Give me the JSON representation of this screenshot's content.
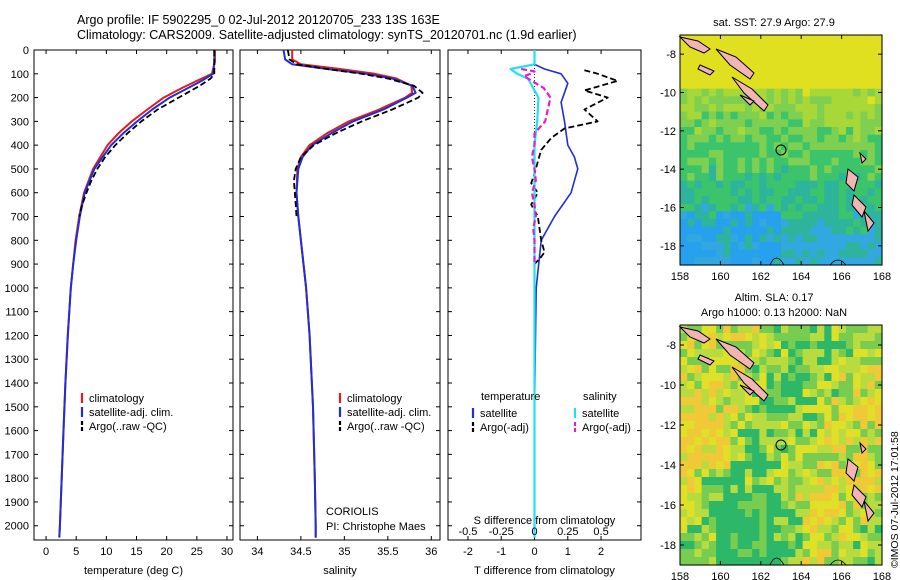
{
  "header": {
    "title_line1": "Argo profile: IF 5902295_0 02-Jul-2012 20120705_233 13S 163E",
    "title_line2": "Climatology: CARS2009. Satellite-adjusted climatology: synTS_20120701.nc (1.9d earlier)"
  },
  "colors": {
    "climatology": "#e41a1c",
    "satellite": "#1f2fd6",
    "argo": "#000000",
    "salinity_satellite": "#22e0f0",
    "salinity_argo": "#e020d0"
  },
  "chart_data": [
    {
      "type": "line",
      "xlabel": "temperature (deg C)",
      "ylabel": "",
      "xlim": [
        -2,
        31
      ],
      "ylim": [
        2060,
        0
      ],
      "xticks": [
        0,
        5,
        10,
        15,
        20,
        25,
        30
      ],
      "yticks": [
        0,
        100,
        200,
        300,
        400,
        500,
        600,
        700,
        800,
        900,
        1000,
        1100,
        1200,
        1300,
        1400,
        1500,
        1600,
        1700,
        1800,
        1900,
        2000
      ],
      "legend": [
        "climatology",
        "satellite-adj. clim.",
        "Argo(..raw -QC)"
      ],
      "series": [
        {
          "name": "climatology",
          "depth": [
            0,
            50,
            100,
            130,
            160,
            200,
            250,
            300,
            350,
            400,
            450,
            500,
            600,
            700,
            800,
            900,
            1000,
            1200,
            1400,
            1600,
            1800,
            2000,
            2050
          ],
          "values": [
            28,
            28,
            27.5,
            25,
            22.5,
            19.5,
            16.8,
            14.2,
            12,
            10.2,
            9,
            7.8,
            6.3,
            5.5,
            4.9,
            4.5,
            4.1,
            3.6,
            3.2,
            2.9,
            2.6,
            2.3,
            2.2
          ]
        },
        {
          "name": "satellite-adj. clim.",
          "depth": [
            0,
            50,
            100,
            130,
            160,
            200,
            250,
            300,
            350,
            400,
            450,
            500,
            600,
            700,
            800,
            900,
            1000,
            1200,
            1400,
            1600,
            1800,
            2000,
            2050
          ],
          "values": [
            27.9,
            27.9,
            27.7,
            25.8,
            23.5,
            20.5,
            17.6,
            15.1,
            12.8,
            10.8,
            9.4,
            8,
            6.4,
            5.6,
            5,
            4.5,
            4.1,
            3.6,
            3.2,
            2.9,
            2.6,
            2.3,
            2.2
          ]
        },
        {
          "name": "Argo(..raw -QC)",
          "depth": [
            0,
            50,
            100,
            120,
            150,
            200,
            250,
            300,
            350,
            400,
            450,
            500,
            550,
            600,
            650,
            700
          ],
          "values": [
            27.9,
            27.9,
            27.9,
            27.3,
            25.5,
            22,
            18.5,
            15.8,
            13.5,
            11.5,
            9.8,
            8.5,
            7.5,
            6.7,
            6,
            5.5
          ]
        }
      ]
    },
    {
      "type": "line",
      "xlabel": "salinity",
      "ylabel": "",
      "xlim": [
        33.8,
        36.1
      ],
      "ylim": [
        2060,
        0
      ],
      "xticks": [
        34,
        34.5,
        35,
        35.5,
        36
      ],
      "xtick_labels": [
        "34",
        "34.5",
        "35",
        "35.5",
        "36"
      ],
      "legend": [
        "climatology",
        "satellite-adj. clim.",
        "Argo(..raw -QC)"
      ],
      "annotation": [
        "CORIOLIS",
        "PI: Christophe Maes"
      ],
      "series": [
        {
          "name": "climatology",
          "depth": [
            0,
            40,
            60,
            80,
            100,
            120,
            150,
            180,
            200,
            250,
            300,
            350,
            400,
            450,
            500,
            600,
            700,
            800,
            900,
            1000,
            1200,
            1500,
            1800,
            2000,
            2050
          ],
          "values": [
            34.4,
            34.4,
            34.5,
            34.95,
            35.35,
            35.6,
            35.77,
            35.78,
            35.7,
            35.4,
            35.05,
            34.8,
            34.6,
            34.5,
            34.46,
            34.45,
            34.47,
            34.5,
            34.53,
            34.56,
            34.6,
            34.64,
            34.66,
            34.67,
            34.67
          ]
        },
        {
          "name": "satellite-adj. clim.",
          "depth": [
            0,
            40,
            60,
            80,
            100,
            120,
            150,
            180,
            200,
            250,
            300,
            350,
            400,
            450,
            500,
            600,
            700,
            800,
            900,
            1000,
            1200,
            1500,
            1800,
            2000,
            2050
          ],
          "values": [
            34.3,
            34.32,
            34.4,
            34.8,
            35.25,
            35.55,
            35.78,
            35.82,
            35.72,
            35.45,
            35.1,
            34.85,
            34.63,
            34.52,
            34.47,
            34.45,
            34.47,
            34.5,
            34.53,
            34.56,
            34.6,
            34.64,
            34.66,
            34.67,
            34.67
          ]
        },
        {
          "name": "Argo(..raw -QC)",
          "depth": [
            0,
            40,
            60,
            80,
            100,
            120,
            150,
            180,
            200,
            250,
            300,
            350,
            400,
            450,
            500,
            550,
            600,
            650,
            700
          ],
          "values": [
            34.35,
            34.37,
            34.45,
            34.8,
            35.2,
            35.5,
            35.8,
            35.9,
            35.85,
            35.55,
            35.2,
            34.9,
            34.65,
            34.5,
            34.44,
            34.42,
            34.43,
            34.44,
            34.45
          ]
        }
      ]
    },
    {
      "type": "line",
      "xlabel": "T difference from climatology",
      "xlabel2": "S difference from climatology",
      "ylabel": "",
      "xlim": [
        -2.6,
        3.2
      ],
      "xticks": [
        -2,
        -1,
        0,
        1,
        2
      ],
      "xtick_labels": [
        "-2",
        "-1",
        "0",
        "1",
        "2"
      ],
      "xticks2_labels": [
        "-0.5",
        "-0.25",
        "0",
        "0.25",
        "0.5"
      ],
      "ylim": [
        2060,
        0
      ],
      "legend": [
        "temperature",
        "satellite",
        "Argo(-adj)",
        "salinity",
        "satellite",
        "Argo(-adj)"
      ],
      "series": [
        {
          "name": "T satellite",
          "depth": [
            0,
            60,
            80,
            100,
            140,
            180,
            220,
            300,
            400,
            450,
            500,
            550,
            600,
            700,
            800,
            1000,
            1500,
            2000,
            2050
          ],
          "values": [
            0,
            0,
            0.3,
            0.8,
            1.0,
            0.9,
            0.8,
            0.9,
            1.0,
            1.2,
            1.3,
            1.2,
            1.1,
            0.6,
            0.2,
            0.05,
            0,
            0,
            0
          ]
        },
        {
          "name": "T Argo(-adj)",
          "depth": [
            85,
            100,
            130,
            170,
            200,
            250,
            300,
            330,
            370,
            420,
            470,
            520,
            560,
            600,
            650,
            700,
            800,
            850,
            870,
            900
          ],
          "values": [
            1.5,
            1.9,
            2.5,
            1.5,
            2.2,
            1.5,
            1.9,
            0.9,
            0.5,
            0.2,
            0.1,
            0,
            -0.1,
            0.1,
            -0.1,
            0.1,
            0.2,
            0.3,
            0.2,
            0
          ]
        },
        {
          "name": "S satellite",
          "depth": [
            0,
            60,
            80,
            100,
            120,
            150,
            200,
            300,
            400,
            500,
            600,
            800,
            1000,
            1500,
            2000,
            2050
          ],
          "values": [
            0,
            0,
            -0.18,
            -0.13,
            -0.05,
            -0.02,
            0.03,
            0.02,
            0,
            0,
            0,
            0,
            0,
            0,
            0,
            0
          ]
        },
        {
          "name": "S Argo(-adj)",
          "depth": [
            80,
            90,
            100,
            110,
            130,
            160,
            200,
            250,
            300,
            350,
            400,
            450,
            500,
            550,
            600,
            650,
            700,
            750,
            800,
            850,
            900
          ],
          "values": [
            -0.1,
            0,
            -0.03,
            -0.08,
            -0.02,
            0.07,
            0.12,
            0.1,
            0.08,
            0,
            0,
            -0.02,
            0,
            0.01,
            -0.02,
            0,
            0.01,
            -0.01,
            0,
            0,
            0
          ]
        }
      ]
    },
    {
      "type": "heatmap",
      "title": "sat. SST: 27.9 Argo: 27.9",
      "xlim": [
        158,
        168
      ],
      "ylim": [
        -19,
        -7
      ],
      "xticks": [
        158,
        160,
        162,
        164,
        166,
        168
      ],
      "yticks": [
        -8,
        -10,
        -12,
        -14,
        -16,
        -18
      ],
      "marker": {
        "lon": 163,
        "lat": -13
      }
    },
    {
      "type": "heatmap",
      "title": "Altim. SLA: 0.17",
      "subtitle": "Argo h1000: 0.13 h2000: NaN",
      "xlim": [
        158,
        168
      ],
      "ylim": [
        -19,
        -7
      ],
      "xticks": [
        158,
        160,
        162,
        164,
        166,
        168
      ],
      "yticks": [
        -8,
        -10,
        -12,
        -14,
        -16,
        -18
      ],
      "marker": {
        "lon": 163,
        "lat": -13
      }
    }
  ],
  "footer": {
    "stamp": "©IMOS 07-Jul-2012 17:01:58"
  }
}
